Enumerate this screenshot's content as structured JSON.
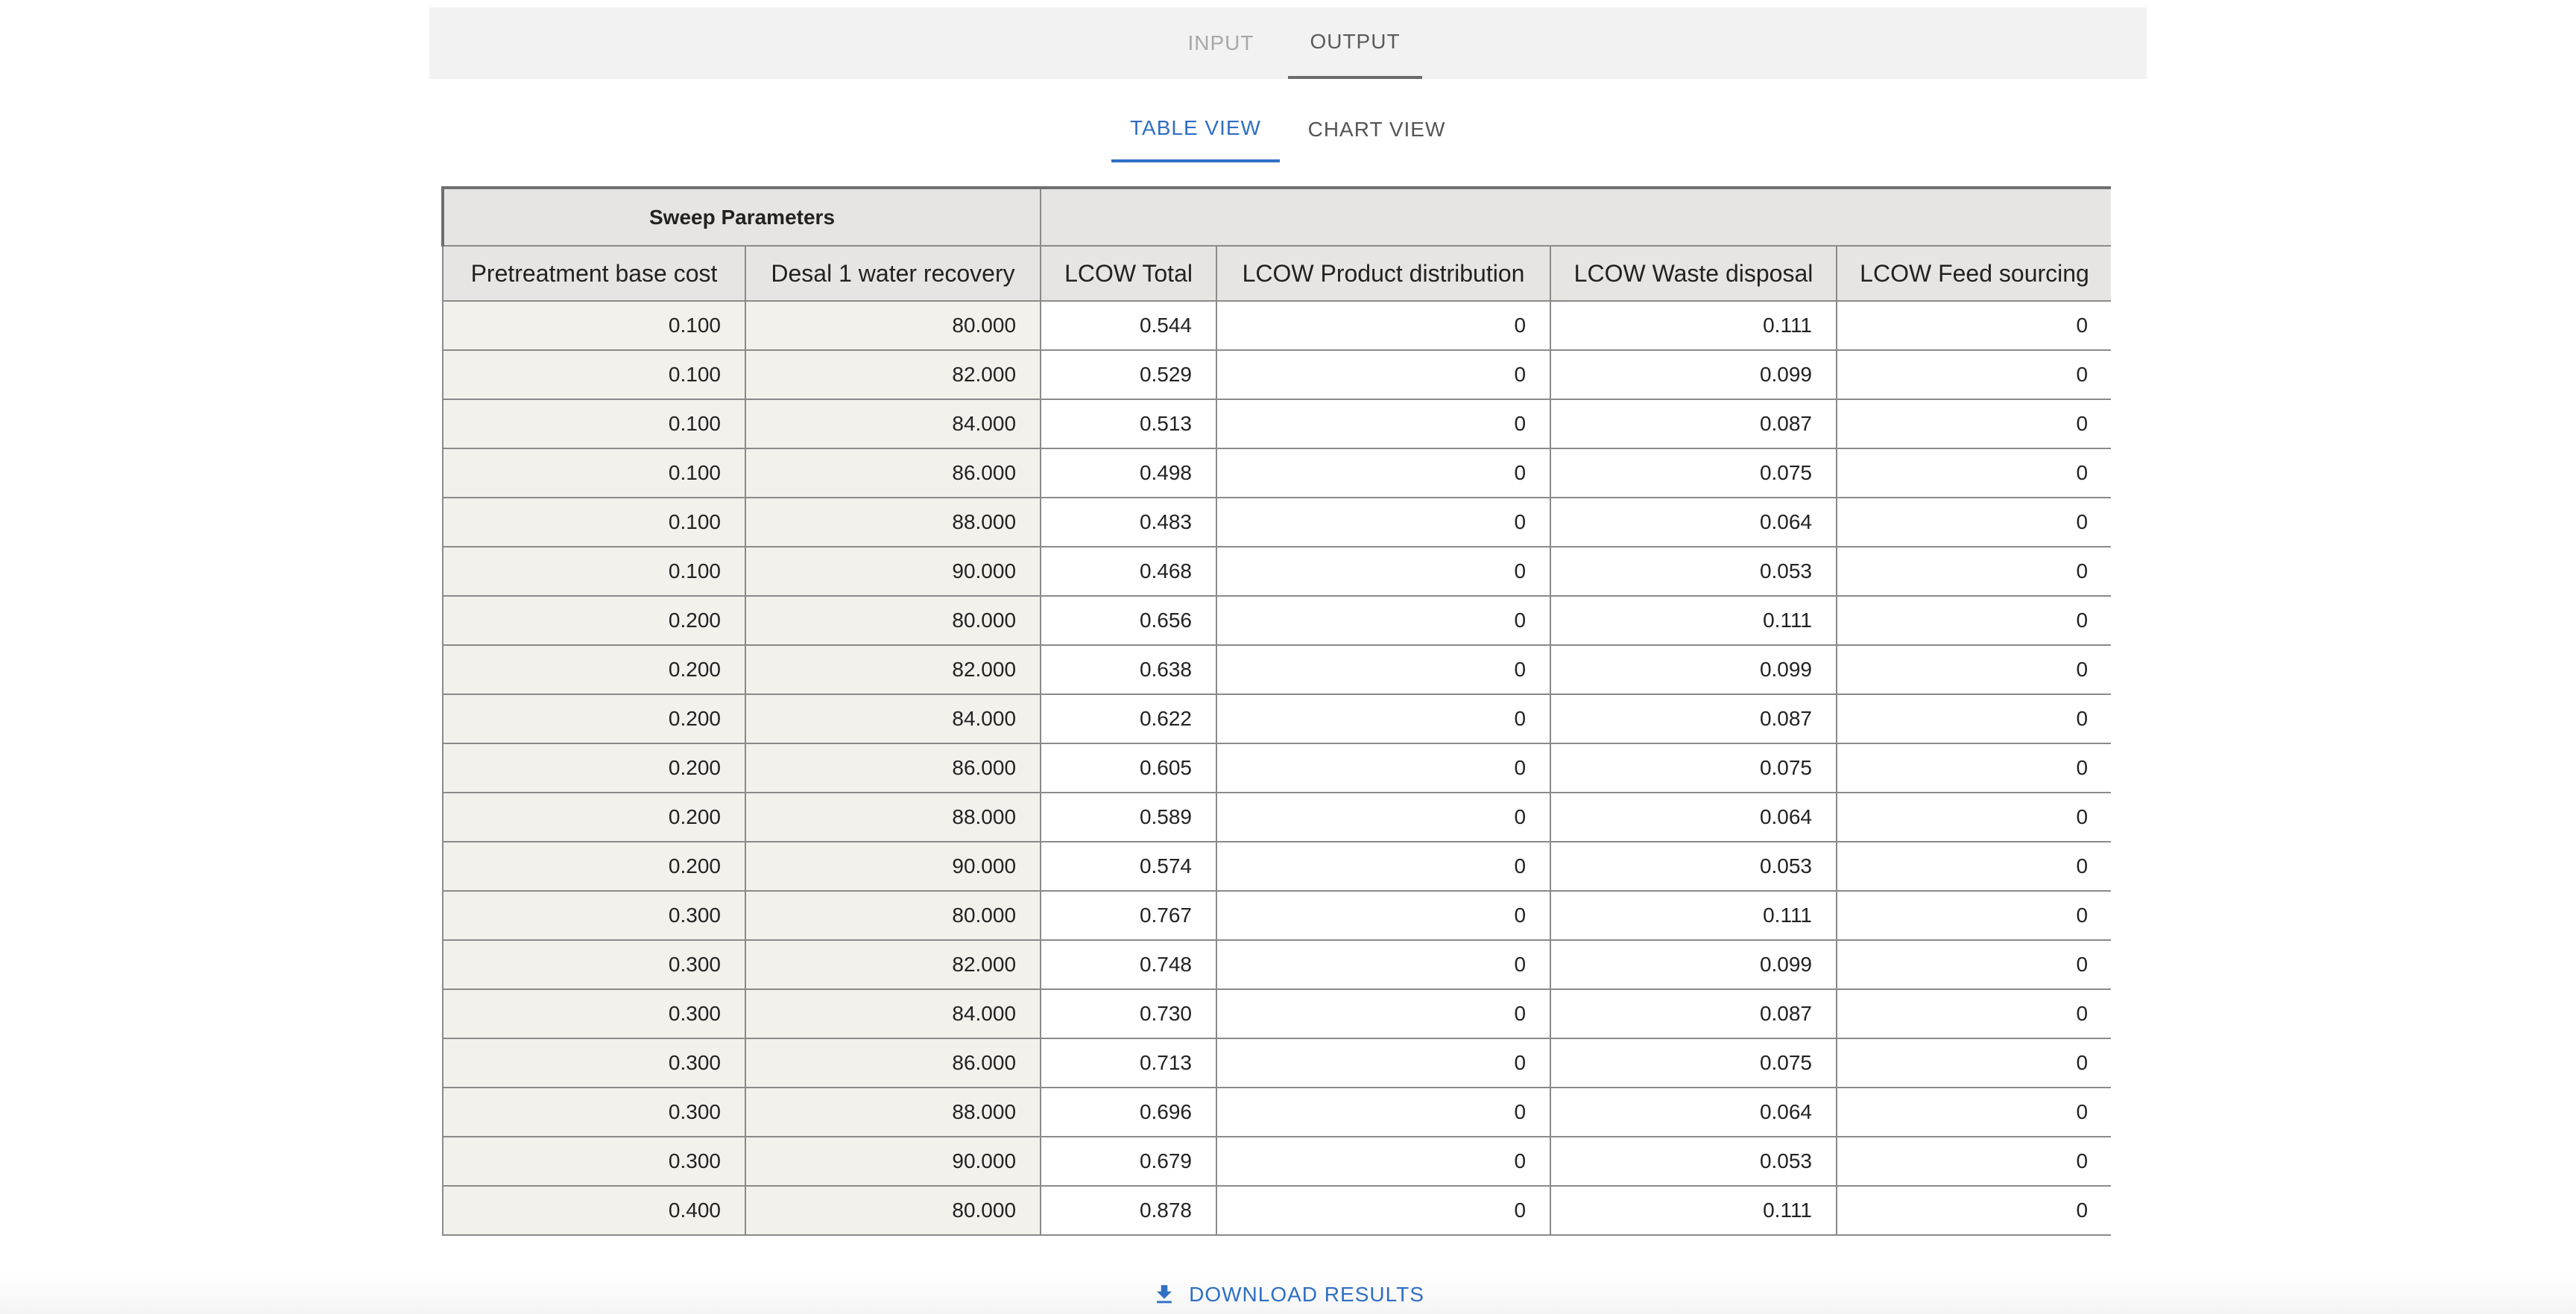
{
  "top_tabs": {
    "input": "INPUT",
    "output": "OUTPUT"
  },
  "view_tabs": {
    "table": "TABLE VIEW",
    "chart": "CHART VIEW"
  },
  "table": {
    "group_header": "Sweep Parameters",
    "columns": [
      "Pretreatment base cost",
      "Desal 1 water recovery",
      "LCOW Total",
      "LCOW Product distribution",
      "LCOW Waste disposal",
      "LCOW Feed sourcing"
    ],
    "rows": [
      [
        "0.100",
        "80.000",
        "0.544",
        "0",
        "0.111",
        "0"
      ],
      [
        "0.100",
        "82.000",
        "0.529",
        "0",
        "0.099",
        "0"
      ],
      [
        "0.100",
        "84.000",
        "0.513",
        "0",
        "0.087",
        "0"
      ],
      [
        "0.100",
        "86.000",
        "0.498",
        "0",
        "0.075",
        "0"
      ],
      [
        "0.100",
        "88.000",
        "0.483",
        "0",
        "0.064",
        "0"
      ],
      [
        "0.100",
        "90.000",
        "0.468",
        "0",
        "0.053",
        "0"
      ],
      [
        "0.200",
        "80.000",
        "0.656",
        "0",
        "0.111",
        "0"
      ],
      [
        "0.200",
        "82.000",
        "0.638",
        "0",
        "0.099",
        "0"
      ],
      [
        "0.200",
        "84.000",
        "0.622",
        "0",
        "0.087",
        "0"
      ],
      [
        "0.200",
        "86.000",
        "0.605",
        "0",
        "0.075",
        "0"
      ],
      [
        "0.200",
        "88.000",
        "0.589",
        "0",
        "0.064",
        "0"
      ],
      [
        "0.200",
        "90.000",
        "0.574",
        "0",
        "0.053",
        "0"
      ],
      [
        "0.300",
        "80.000",
        "0.767",
        "0",
        "0.111",
        "0"
      ],
      [
        "0.300",
        "82.000",
        "0.748",
        "0",
        "0.099",
        "0"
      ],
      [
        "0.300",
        "84.000",
        "0.730",
        "0",
        "0.087",
        "0"
      ],
      [
        "0.300",
        "86.000",
        "0.713",
        "0",
        "0.075",
        "0"
      ],
      [
        "0.300",
        "88.000",
        "0.696",
        "0",
        "0.064",
        "0"
      ],
      [
        "0.300",
        "90.000",
        "0.679",
        "0",
        "0.053",
        "0"
      ],
      [
        "0.400",
        "80.000",
        "0.878",
        "0",
        "0.111",
        "0"
      ]
    ]
  },
  "download": {
    "label": "DOWNLOAD RESULTS",
    "icon": "download-icon"
  },
  "colors": {
    "accent": "#2f6fc4",
    "header_bg": "#e6e5e3",
    "sweep_bg": "#f3f1ec"
  }
}
